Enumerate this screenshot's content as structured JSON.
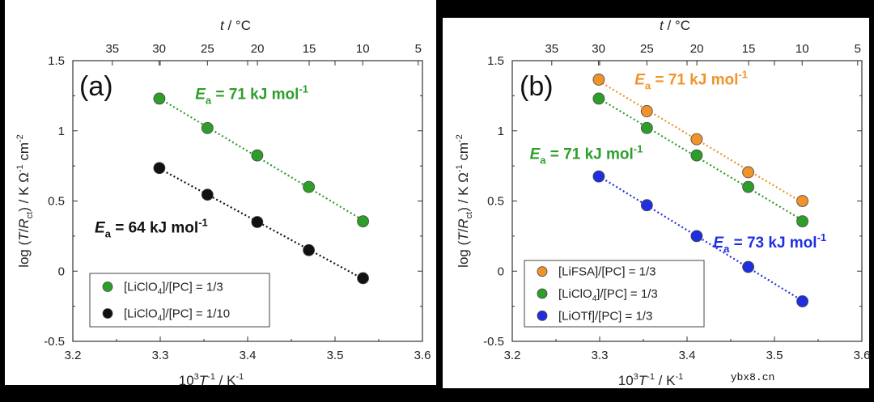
{
  "colors": {
    "green": "#2e9e2a",
    "black": "#111111",
    "orange": "#f0932b",
    "blue": "#1f2fe0",
    "frame": "#000000"
  },
  "watermark": "ybx8.cn",
  "chart_data": [
    {
      "type": "scatter",
      "panel_label": "(a)",
      "xlabel": {
        "base": "10",
        "sup1": "3",
        "T": "T",
        "sup2": "-1",
        "unit": " / K",
        "sup3": "-1"
      },
      "ylabel": {
        "pre": "log (",
        "T": "T",
        "slash": "/",
        "R": "R",
        "sub": "ct",
        "rest": ")  /  K Ω",
        "sup1": "-1",
        "cm": " cm",
        "sup2": "-2"
      },
      "top_axis_label": {
        "t": "t",
        "unit": " / °C"
      },
      "xlim": [
        3.2,
        3.6
      ],
      "ylim": [
        -0.5,
        1.5
      ],
      "x_ticks": [
        "3.2",
        "3.3",
        "3.4",
        "3.5",
        "3.6"
      ],
      "y_ticks": [
        "-0.5",
        "0",
        "0.5",
        "1",
        "1.5"
      ],
      "top_ticks": [
        "35",
        "30",
        "25",
        "20",
        "15",
        "10",
        "5"
      ],
      "top_tick_celsius": [
        35,
        30,
        25,
        20,
        15,
        10,
        5
      ],
      "series": [
        {
          "name": "[LiClO4]/[PC] = 1/3",
          "legend": {
            "pre": "[LiClO",
            "sub": "4",
            "post": "]/[PC] = 1/3"
          },
          "color": "#2e9e2a",
          "x": [
            3.299,
            3.354,
            3.411,
            3.47,
            3.532
          ],
          "y": [
            1.23,
            1.02,
            0.825,
            0.6,
            0.355
          ]
        },
        {
          "name": "[LiClO4]/[PC] = 1/10",
          "legend": {
            "pre": "[LiClO",
            "sub": "4",
            "post": "]/[PC] = 1/10"
          },
          "color": "#111111",
          "x": [
            3.299,
            3.354,
            3.411,
            3.47,
            3.532
          ],
          "y": [
            0.735,
            0.545,
            0.35,
            0.15,
            -0.05
          ]
        }
      ],
      "annotations": [
        {
          "E": "E",
          "sub": "a",
          "text": " = 71 kJ mol",
          "sup": "-1",
          "color": "#2e9e2a",
          "at": [
            3.34,
            1.225
          ]
        },
        {
          "E": "E",
          "sub": "a",
          "text": " = 64 kJ mol",
          "sup": "-1",
          "color": "#111111",
          "at": [
            3.225,
            0.275
          ]
        }
      ]
    },
    {
      "type": "scatter",
      "panel_label": "(b)",
      "xlabel": {
        "base": "10",
        "sup1": "3",
        "T": "T",
        "sup2": "-1",
        "unit": " / K",
        "sup3": "-1"
      },
      "ylabel": {
        "pre": "log (",
        "T": "T",
        "slash": "/",
        "R": "R",
        "sub": "ct",
        "rest": ")  /  K Ω",
        "sup1": "-1",
        "cm": " cm",
        "sup2": "-2"
      },
      "top_axis_label": {
        "t": "t",
        "unit": " / °C"
      },
      "xlim": [
        3.2,
        3.6
      ],
      "ylim": [
        -0.5,
        1.5
      ],
      "x_ticks": [
        "3.2",
        "3.3",
        "3.4",
        "3.5",
        "3.6"
      ],
      "y_ticks": [
        "-0.5",
        "0",
        "0.5",
        "1",
        "1.5"
      ],
      "top_ticks": [
        "35",
        "30",
        "25",
        "20",
        "15",
        "10",
        "5"
      ],
      "top_tick_celsius": [
        35,
        30,
        25,
        20,
        15,
        10,
        5
      ],
      "series": [
        {
          "name": "[LiFSA]/[PC] = 1/3",
          "legend": {
            "pre": "[LiFSA]/[PC] = 1/3",
            "sub": "",
            "post": ""
          },
          "color": "#f0932b",
          "x": [
            3.299,
            3.354,
            3.411,
            3.47,
            3.532
          ],
          "y": [
            1.365,
            1.14,
            0.94,
            0.705,
            0.5
          ]
        },
        {
          "name": "[LiClO4]/[PC] = 1/3",
          "legend": {
            "pre": "[LiClO",
            "sub": "4",
            "post": "]/[PC] = 1/3"
          },
          "color": "#2e9e2a",
          "x": [
            3.299,
            3.354,
            3.411,
            3.47,
            3.532
          ],
          "y": [
            1.23,
            1.02,
            0.825,
            0.6,
            0.355
          ]
        },
        {
          "name": "[LiOTf]/[PC] = 1/3",
          "legend": {
            "pre": "[LiOTf]/[PC] = 1/3",
            "sub": "",
            "post": ""
          },
          "color": "#1f2fe0",
          "x": [
            3.299,
            3.354,
            3.411,
            3.47,
            3.532
          ],
          "y": [
            0.675,
            0.47,
            0.25,
            0.03,
            -0.215
          ]
        }
      ],
      "annotations": [
        {
          "E": "E",
          "sub": "a",
          "text": " = 71 kJ mol",
          "sup": "-1",
          "color": "#f0932b",
          "at": [
            3.34,
            1.33
          ]
        },
        {
          "E": "E",
          "sub": "a",
          "text": " = 71 kJ mol",
          "sup": "-1",
          "color": "#2e9e2a",
          "at": [
            3.22,
            0.8
          ]
        },
        {
          "E": "E",
          "sub": "a",
          "text": " = 73 kJ mol",
          "sup": "-1",
          "color": "#1f2fe0",
          "at": [
            3.43,
            0.17
          ]
        }
      ]
    }
  ]
}
